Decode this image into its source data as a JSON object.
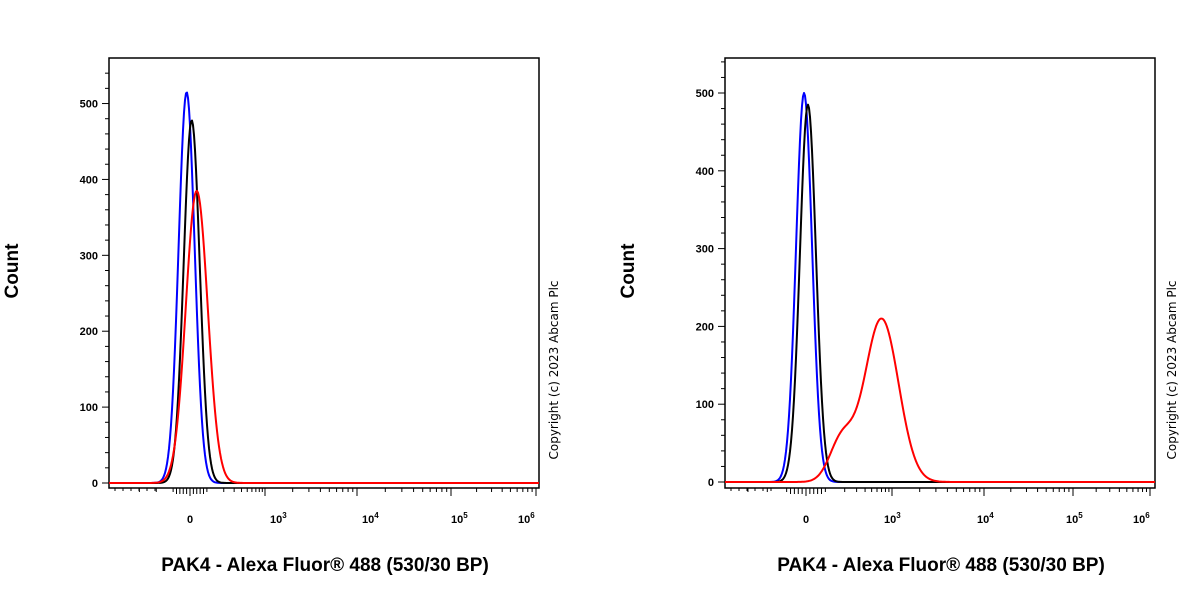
{
  "chart_data": [
    {
      "type": "line",
      "xlabel": "PAK4 - Alexa Fluor® 488 (530/30 BP)",
      "ylabel": "Count",
      "watermark": "Copyright (c) 2023 Abcam Plc",
      "x_scale": "biexponential",
      "ylim": [
        0,
        560
      ],
      "y_ticks": [
        0,
        100,
        200,
        300,
        400,
        500
      ],
      "x_ticks": [
        {
          "base": "0",
          "exp": ""
        },
        {
          "base": "10",
          "exp": "3"
        },
        {
          "base": "10",
          "exp": "4"
        },
        {
          "base": "10",
          "exp": "5"
        },
        {
          "base": "10",
          "exp": "6"
        }
      ],
      "series": [
        {
          "color": "#0000ff",
          "peak_x": -20,
          "peak_y": 515,
          "width": 55
        },
        {
          "color": "#000000",
          "peak_x": 10,
          "peak_y": 478,
          "width": 55
        },
        {
          "color": "#ff0000",
          "peak_x": 40,
          "peak_y": 385,
          "width": 75
        }
      ]
    },
    {
      "type": "line",
      "xlabel": "PAK4 - Alexa Fluor® 488 (530/30 BP)",
      "ylabel": "Count",
      "watermark": "Copyright (c) 2023 Abcam Plc",
      "x_scale": "biexponential",
      "ylim": [
        0,
        545
      ],
      "y_ticks": [
        0,
        100,
        200,
        300,
        400,
        500
      ],
      "x_ticks": [
        {
          "base": "0",
          "exp": ""
        },
        {
          "base": "10",
          "exp": "3"
        },
        {
          "base": "10",
          "exp": "4"
        },
        {
          "base": "10",
          "exp": "5"
        },
        {
          "base": "10",
          "exp": "6"
        }
      ],
      "series": [
        {
          "color": "#0000ff",
          "peak_x": -10,
          "peak_y": 500,
          "width": 55
        },
        {
          "color": "#000000",
          "peak_x": 10,
          "peak_y": 485,
          "width": 55
        },
        {
          "color": "#ff0000",
          "peak_x": 700,
          "peak_y": 210,
          "width": 380
        }
      ]
    }
  ]
}
